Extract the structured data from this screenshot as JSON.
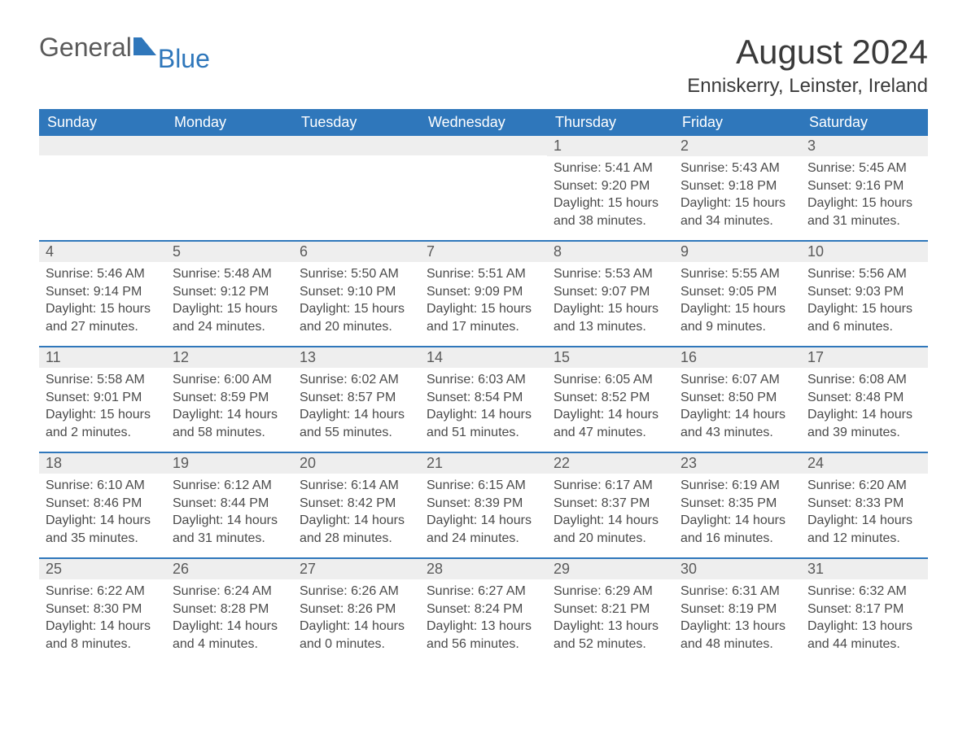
{
  "logo": {
    "text1": "General",
    "text2": "Blue",
    "accent_color": "#2f77bb"
  },
  "title": "August 2024",
  "location": "Enniskerry, Leinster, Ireland",
  "colors": {
    "header_bg": "#2f77bb",
    "header_text": "#ffffff",
    "daynum_bg": "#eeeeee",
    "body_text": "#4a4a4a",
    "row_border": "#2f77bb",
    "page_bg": "#ffffff"
  },
  "weekdays": [
    "Sunday",
    "Monday",
    "Tuesday",
    "Wednesday",
    "Thursday",
    "Friday",
    "Saturday"
  ],
  "weeks": [
    [
      {
        "empty": true
      },
      {
        "empty": true
      },
      {
        "empty": true
      },
      {
        "empty": true
      },
      {
        "day": "1",
        "sunrise": "Sunrise: 5:41 AM",
        "sunset": "Sunset: 9:20 PM",
        "daylight": "Daylight: 15 hours and 38 minutes."
      },
      {
        "day": "2",
        "sunrise": "Sunrise: 5:43 AM",
        "sunset": "Sunset: 9:18 PM",
        "daylight": "Daylight: 15 hours and 34 minutes."
      },
      {
        "day": "3",
        "sunrise": "Sunrise: 5:45 AM",
        "sunset": "Sunset: 9:16 PM",
        "daylight": "Daylight: 15 hours and 31 minutes."
      }
    ],
    [
      {
        "day": "4",
        "sunrise": "Sunrise: 5:46 AM",
        "sunset": "Sunset: 9:14 PM",
        "daylight": "Daylight: 15 hours and 27 minutes."
      },
      {
        "day": "5",
        "sunrise": "Sunrise: 5:48 AM",
        "sunset": "Sunset: 9:12 PM",
        "daylight": "Daylight: 15 hours and 24 minutes."
      },
      {
        "day": "6",
        "sunrise": "Sunrise: 5:50 AM",
        "sunset": "Sunset: 9:10 PM",
        "daylight": "Daylight: 15 hours and 20 minutes."
      },
      {
        "day": "7",
        "sunrise": "Sunrise: 5:51 AM",
        "sunset": "Sunset: 9:09 PM",
        "daylight": "Daylight: 15 hours and 17 minutes."
      },
      {
        "day": "8",
        "sunrise": "Sunrise: 5:53 AM",
        "sunset": "Sunset: 9:07 PM",
        "daylight": "Daylight: 15 hours and 13 minutes."
      },
      {
        "day": "9",
        "sunrise": "Sunrise: 5:55 AM",
        "sunset": "Sunset: 9:05 PM",
        "daylight": "Daylight: 15 hours and 9 minutes."
      },
      {
        "day": "10",
        "sunrise": "Sunrise: 5:56 AM",
        "sunset": "Sunset: 9:03 PM",
        "daylight": "Daylight: 15 hours and 6 minutes."
      }
    ],
    [
      {
        "day": "11",
        "sunrise": "Sunrise: 5:58 AM",
        "sunset": "Sunset: 9:01 PM",
        "daylight": "Daylight: 15 hours and 2 minutes."
      },
      {
        "day": "12",
        "sunrise": "Sunrise: 6:00 AM",
        "sunset": "Sunset: 8:59 PM",
        "daylight": "Daylight: 14 hours and 58 minutes."
      },
      {
        "day": "13",
        "sunrise": "Sunrise: 6:02 AM",
        "sunset": "Sunset: 8:57 PM",
        "daylight": "Daylight: 14 hours and 55 minutes."
      },
      {
        "day": "14",
        "sunrise": "Sunrise: 6:03 AM",
        "sunset": "Sunset: 8:54 PM",
        "daylight": "Daylight: 14 hours and 51 minutes."
      },
      {
        "day": "15",
        "sunrise": "Sunrise: 6:05 AM",
        "sunset": "Sunset: 8:52 PM",
        "daylight": "Daylight: 14 hours and 47 minutes."
      },
      {
        "day": "16",
        "sunrise": "Sunrise: 6:07 AM",
        "sunset": "Sunset: 8:50 PM",
        "daylight": "Daylight: 14 hours and 43 minutes."
      },
      {
        "day": "17",
        "sunrise": "Sunrise: 6:08 AM",
        "sunset": "Sunset: 8:48 PM",
        "daylight": "Daylight: 14 hours and 39 minutes."
      }
    ],
    [
      {
        "day": "18",
        "sunrise": "Sunrise: 6:10 AM",
        "sunset": "Sunset: 8:46 PM",
        "daylight": "Daylight: 14 hours and 35 minutes."
      },
      {
        "day": "19",
        "sunrise": "Sunrise: 6:12 AM",
        "sunset": "Sunset: 8:44 PM",
        "daylight": "Daylight: 14 hours and 31 minutes."
      },
      {
        "day": "20",
        "sunrise": "Sunrise: 6:14 AM",
        "sunset": "Sunset: 8:42 PM",
        "daylight": "Daylight: 14 hours and 28 minutes."
      },
      {
        "day": "21",
        "sunrise": "Sunrise: 6:15 AM",
        "sunset": "Sunset: 8:39 PM",
        "daylight": "Daylight: 14 hours and 24 minutes."
      },
      {
        "day": "22",
        "sunrise": "Sunrise: 6:17 AM",
        "sunset": "Sunset: 8:37 PM",
        "daylight": "Daylight: 14 hours and 20 minutes."
      },
      {
        "day": "23",
        "sunrise": "Sunrise: 6:19 AM",
        "sunset": "Sunset: 8:35 PM",
        "daylight": "Daylight: 14 hours and 16 minutes."
      },
      {
        "day": "24",
        "sunrise": "Sunrise: 6:20 AM",
        "sunset": "Sunset: 8:33 PM",
        "daylight": "Daylight: 14 hours and 12 minutes."
      }
    ],
    [
      {
        "day": "25",
        "sunrise": "Sunrise: 6:22 AM",
        "sunset": "Sunset: 8:30 PM",
        "daylight": "Daylight: 14 hours and 8 minutes."
      },
      {
        "day": "26",
        "sunrise": "Sunrise: 6:24 AM",
        "sunset": "Sunset: 8:28 PM",
        "daylight": "Daylight: 14 hours and 4 minutes."
      },
      {
        "day": "27",
        "sunrise": "Sunrise: 6:26 AM",
        "sunset": "Sunset: 8:26 PM",
        "daylight": "Daylight: 14 hours and 0 minutes."
      },
      {
        "day": "28",
        "sunrise": "Sunrise: 6:27 AM",
        "sunset": "Sunset: 8:24 PM",
        "daylight": "Daylight: 13 hours and 56 minutes."
      },
      {
        "day": "29",
        "sunrise": "Sunrise: 6:29 AM",
        "sunset": "Sunset: 8:21 PM",
        "daylight": "Daylight: 13 hours and 52 minutes."
      },
      {
        "day": "30",
        "sunrise": "Sunrise: 6:31 AM",
        "sunset": "Sunset: 8:19 PM",
        "daylight": "Daylight: 13 hours and 48 minutes."
      },
      {
        "day": "31",
        "sunrise": "Sunrise: 6:32 AM",
        "sunset": "Sunset: 8:17 PM",
        "daylight": "Daylight: 13 hours and 44 minutes."
      }
    ]
  ]
}
